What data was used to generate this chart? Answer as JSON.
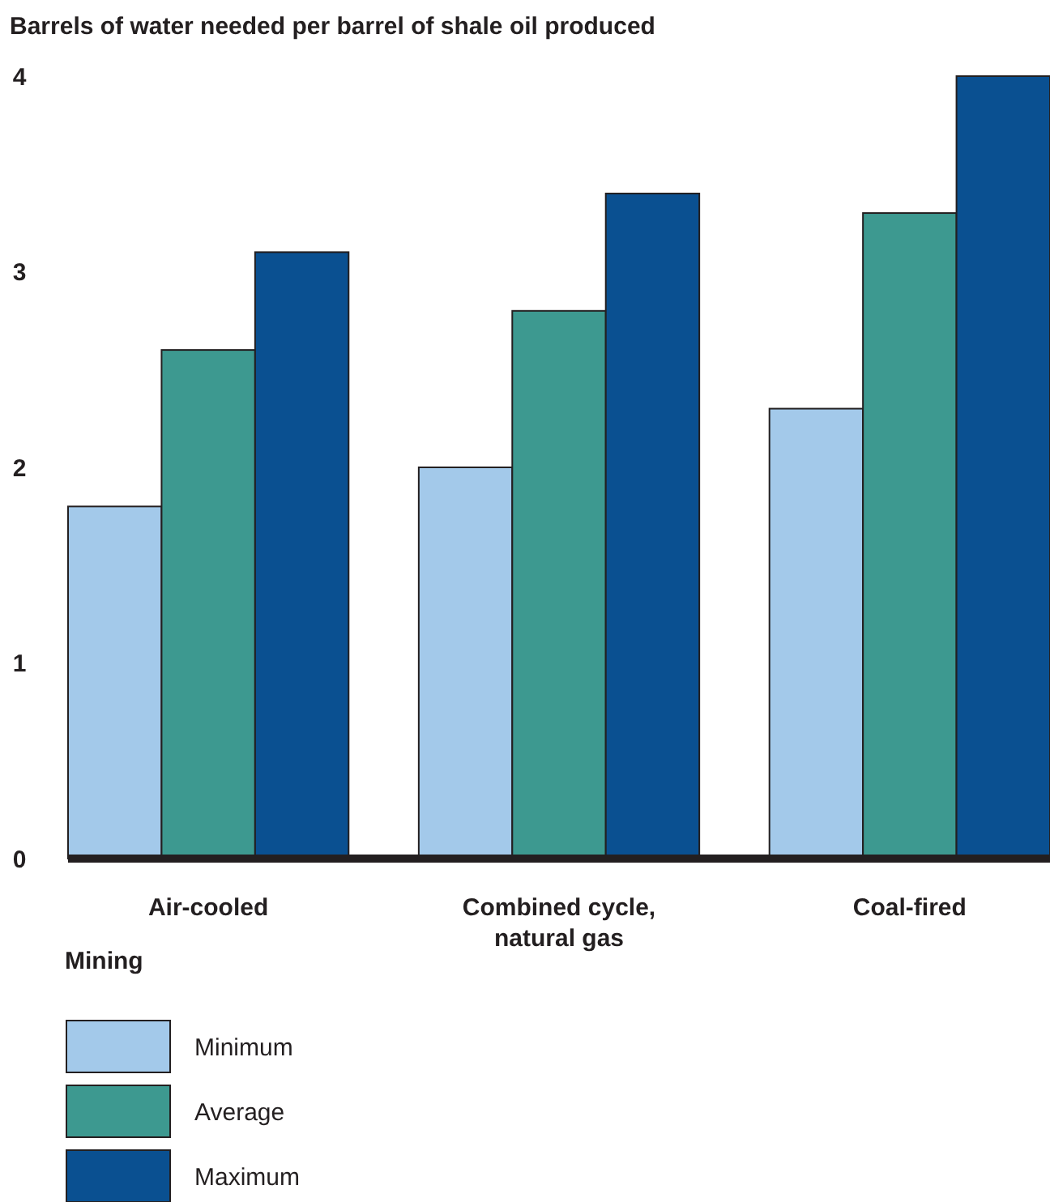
{
  "chart_data": {
    "type": "bar",
    "title": "Barrels of water needed per barrel of shale oil produced",
    "categories": [
      "Air-cooled",
      "Combined cycle, natural gas",
      "Coal-fired"
    ],
    "series": [
      {
        "name": "Minimum",
        "color": "#a3c9ea",
        "values": [
          1.8,
          2.0,
          2.3
        ]
      },
      {
        "name": "Average",
        "color": "#3d9990",
        "values": [
          2.6,
          2.8,
          3.3
        ]
      },
      {
        "name": "Maximum",
        "color": "#0a5091",
        "values": [
          3.1,
          3.4,
          4.0
        ]
      }
    ],
    "legend_title": "Mining",
    "legend": "bottom left",
    "grid": false,
    "ylim": [
      0,
      4
    ],
    "yticks": [
      0,
      1,
      2,
      3,
      4
    ]
  }
}
